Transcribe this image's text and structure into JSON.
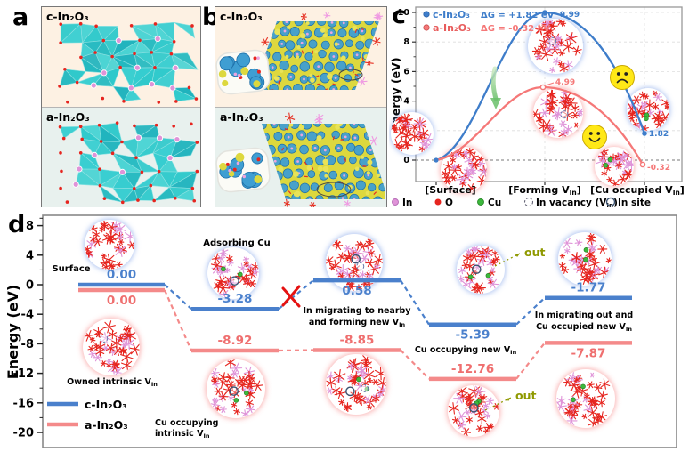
{
  "panel_labels": {
    "a": "a",
    "b": "b",
    "c": "c",
    "d": "d"
  },
  "materials": {
    "c": "c-In₂O₃",
    "a": "a-In₂O₃"
  },
  "panel_c": {
    "ylabel": "Energy (eV)",
    "yticks": [
      "0",
      "2",
      "4",
      "6",
      "8",
      "10"
    ],
    "legend": [
      {
        "name": "c-In₂O₃",
        "dg": "ΔG = +1.82 eV"
      },
      {
        "name": "a-In₂O₃",
        "dg": "ΔG = -0.32 eV"
      }
    ],
    "xlabels": [
      {
        "pre": "[Surface]",
        "sub": "",
        "post": ""
      },
      {
        "pre": "[Forming V",
        "sub": "In",
        "post": "]"
      },
      {
        "pre": "[Cu occupied V",
        "sub": "In",
        "post": "]"
      }
    ],
    "atom_legend": [
      {
        "pre": "In",
        "sub": "",
        "post": ""
      },
      {
        "pre": "O",
        "sub": "",
        "post": ""
      },
      {
        "pre": "Cu",
        "sub": "",
        "post": ""
      },
      {
        "pre": "In vacancy (V",
        "sub": "In",
        "post": ")"
      },
      {
        "pre": "In site",
        "sub": "",
        "post": ""
      }
    ],
    "peak_labels": [
      "9.99",
      "4.99"
    ],
    "end_labels": [
      "1.82",
      "-0.32"
    ]
  },
  "panel_d": {
    "ylabel": "Energy (eV)",
    "yticks": [
      "8",
      "4",
      "0",
      "-4",
      "-8",
      "-12",
      "-16",
      "-20"
    ],
    "legend": [
      "c-In₂O₃",
      "a-In₂O₃"
    ],
    "surface_label": "Surface",
    "out_label": "out",
    "annotations": {
      "adsorbing": {
        "line1": "Adsorbing Cu",
        "line2": "",
        "sub": ""
      },
      "migrating_nearby": {
        "line1": "In migrating to nearby",
        "line2": "and forming new V",
        "sub": "In"
      },
      "cu_new": {
        "line1": "Cu occupying new V",
        "line2": "",
        "sub": "In"
      },
      "migrating_out": {
        "line1": "In migrating out and",
        "line2": "Cu occupied new V",
        "sub": "In"
      },
      "owned": {
        "line1": "Owned intrinsic V",
        "line2": "",
        "sub": "In"
      },
      "cu_intrinsic": {
        "line1": "Cu occupying",
        "line2": "intrinsic V",
        "sub": "In"
      }
    },
    "values": {
      "c": [
        "0.00",
        "-3.28",
        "0.58",
        "-5.39",
        "-1.77"
      ],
      "a": [
        "0.00",
        "-8.92",
        "-8.85",
        "-12.76",
        "-7.87"
      ]
    }
  },
  "chart_data": [
    {
      "id": "panel-c",
      "type": "line",
      "title": "",
      "xlabel": "",
      "ylabel": "Energy (eV)",
      "ylim": [
        -1.6,
        10.8
      ],
      "yticks": [
        0,
        2,
        4,
        6,
        8,
        10
      ],
      "grid": true,
      "legend_position": "top-left",
      "zero_line": true,
      "categories": [
        "[Surface]",
        "[Forming VIn]",
        "[Cu occupied VIn]"
      ],
      "series": [
        {
          "name": "c-In2O3",
          "delta_g_eV": "+1.82",
          "values": [
            0,
            9.99,
            1.82
          ]
        },
        {
          "name": "a-In2O3",
          "delta_g_eV": "-0.32",
          "values": [
            0,
            4.99,
            -0.32
          ]
        }
      ]
    },
    {
      "id": "panel-d",
      "type": "line",
      "subtype": "energy-profile-steps",
      "title": "",
      "xlabel": "",
      "ylabel": "Energy (eV)",
      "ylim": [
        -21,
        9.5
      ],
      "yticks": [
        8,
        4,
        0,
        -4,
        -8,
        -12,
        -16,
        -20
      ],
      "grid": false,
      "legend_position": "bottom-left",
      "categories": [
        "Surface",
        "Adsorbing Cu",
        "In migrating to nearby and forming new VIn",
        "Cu occupying new VIn",
        "In migrating out and Cu occupied new VIn"
      ],
      "series": [
        {
          "name": "c-In2O3",
          "values": [
            0.0,
            -3.28,
            0.58,
            -5.39,
            -1.77
          ]
        },
        {
          "name": "a-In2O3",
          "values": [
            0.0,
            -8.92,
            -8.85,
            -12.76,
            -7.87
          ]
        }
      ]
    }
  ],
  "colors": {
    "blue": "#4a80cc",
    "curve_blue": "#3e7dca",
    "salmon": "#f48a8a",
    "curve_red": "#f57878",
    "cu_green": "#3cb83c",
    "o_red": "#e6251f",
    "in_pink": "#df93d8",
    "olive": "#8f9900",
    "smiley_yellow": "#ffe817",
    "cyan": "#28c6c8",
    "iso_yellow": "#ddd83e",
    "iso_blue": "#3f9ed2",
    "bg_cream": "#fdf1e3",
    "bg_teal": "#e8f1ee",
    "site_navy": "#3d5472",
    "red_x": "#e51212"
  }
}
